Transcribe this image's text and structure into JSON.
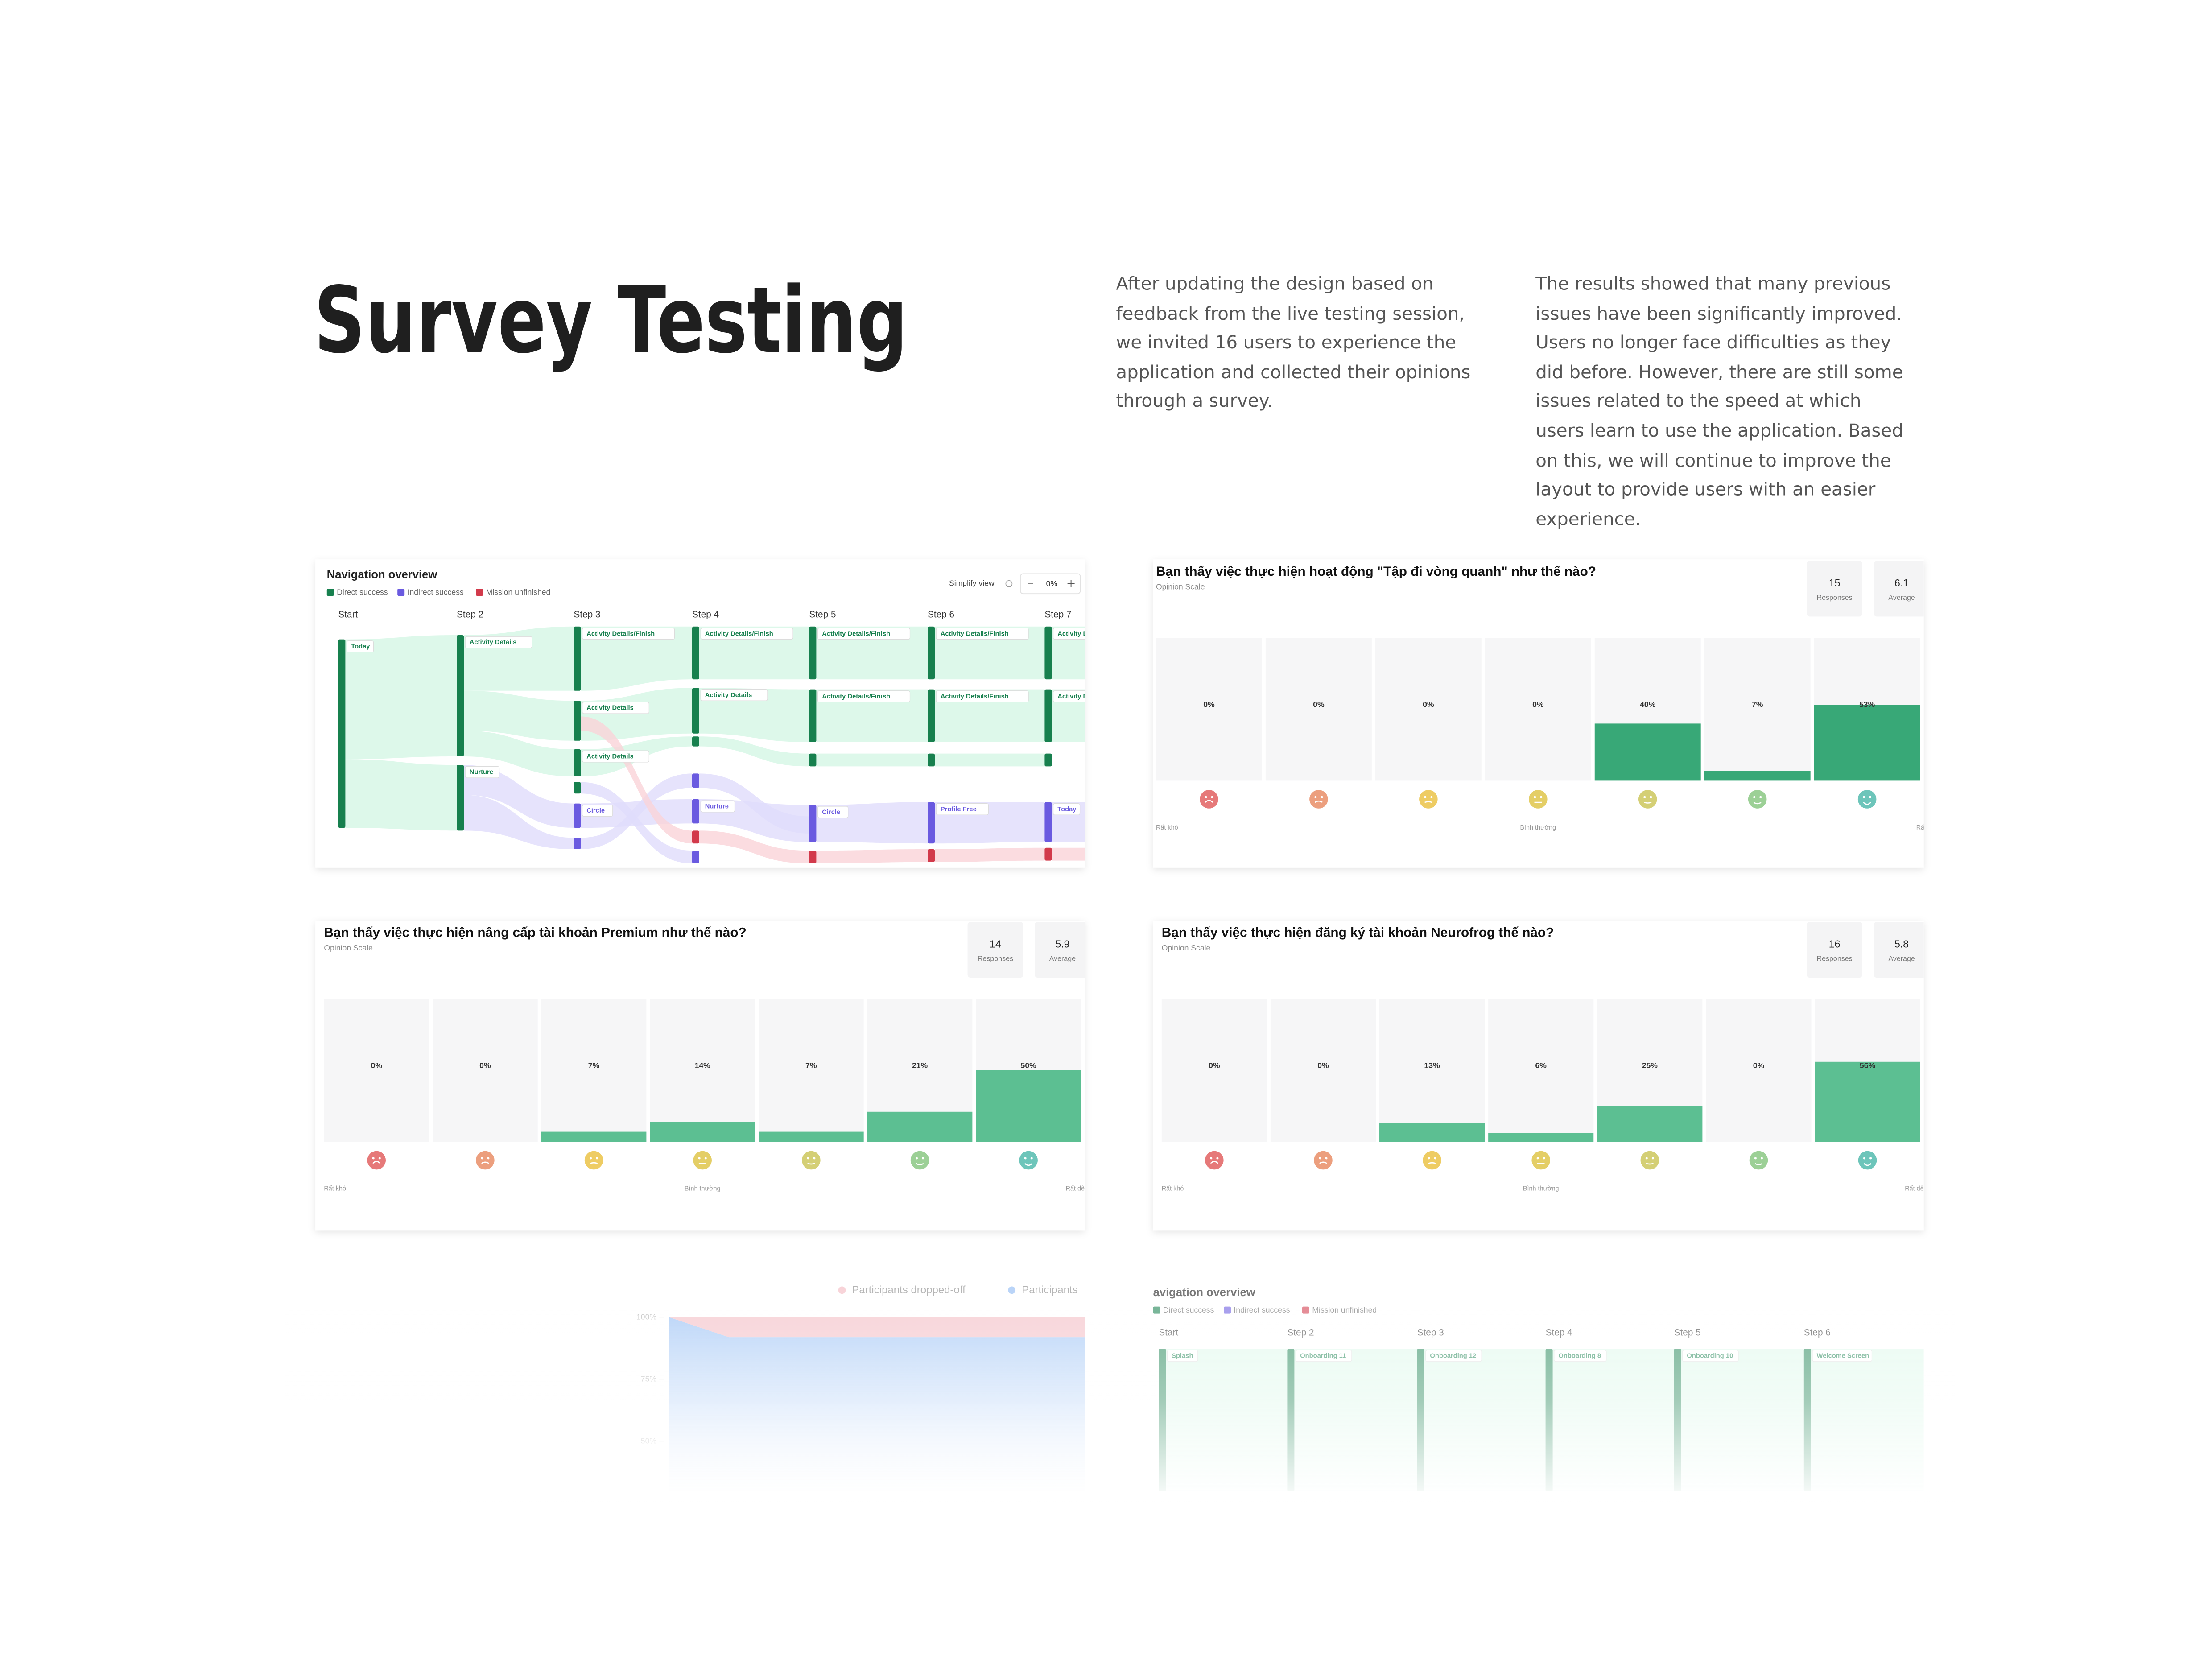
{
  "header": {
    "title": "Survey Testing",
    "paragraphs": [
      "After updating the design based on feedback from the live testing session, we invited 16 users to experience the application and collected their opinions through a survey.",
      "The results showed that many previous issues have been significantly improved. Users no longer face difficulties as they did before. However, there are still some issues related to the speed at which users learn to use the application. Based on this, we will continue to improve the layout to provide users with an easier experience."
    ]
  },
  "chart_data": [
    {
      "type": "sankey",
      "title": "Navigation overview",
      "legend": [
        {
          "name": "Direct success",
          "color": "#17804e"
        },
        {
          "name": "Indirect success",
          "color": "#6a5ae0"
        },
        {
          "name": "Mission unfinished",
          "color": "#d23a4b"
        }
      ],
      "controls": {
        "view": "Simplify view",
        "zoom": "0%"
      },
      "steps": [
        {
          "name": "Start",
          "nodes": [
            "Today"
          ]
        },
        {
          "name": "Step 2",
          "nodes": [
            "Activity Details",
            "Nurture"
          ]
        },
        {
          "name": "Step 3",
          "nodes": [
            "Activity Details/Finish",
            "Activity Details",
            "Activity Details",
            "Circle"
          ]
        },
        {
          "name": "Step 4",
          "nodes": [
            "Activity Details/Finish",
            "Activity Details",
            "Nurture"
          ]
        },
        {
          "name": "Step 5",
          "nodes": [
            "Activity Details/Finish",
            "Activity Details/Finish",
            "Circle"
          ]
        },
        {
          "name": "Step 6",
          "nodes": [
            "Activity Details/Finish",
            "Activity Details/Finish",
            "Profile Free"
          ]
        },
        {
          "name": "Step 7",
          "nodes": [
            "Activity Details/Finish",
            "Activity Details/Finish",
            "Today"
          ]
        }
      ]
    },
    {
      "type": "bar",
      "title": "Bạn thấy việc thực hiện hoạt động \"Tập đi vòng quanh\" như thế nào?",
      "subtitle": "Opinion Scale",
      "responses": 15,
      "responses_label": "Responses",
      "average": 6.1,
      "average_label": "Average",
      "values": [
        0,
        0,
        0,
        0,
        40,
        7,
        53
      ],
      "value_labels": [
        "0%",
        "0%",
        "0%",
        "0%",
        "40%",
        "7%",
        "53%"
      ],
      "scale_labels": [
        "Rất khó",
        "Bình thường",
        "Rất dễ"
      ],
      "color": "#38a877",
      "ylim": [
        0,
        100
      ]
    },
    {
      "type": "bar",
      "title": "Bạn thấy việc thực hiện nâng cấp tài khoản Premium như thế nào?",
      "subtitle": "Opinion Scale",
      "responses": 14,
      "responses_label": "Responses",
      "average": 5.9,
      "average_label": "Average",
      "values": [
        0,
        0,
        7,
        14,
        7,
        21,
        50
      ],
      "value_labels": [
        "0%",
        "0%",
        "7%",
        "14%",
        "7%",
        "21%",
        "50%"
      ],
      "scale_labels": [
        "Rất khó",
        "Bình thường",
        "Rất dễ"
      ],
      "color": "#5cbf92",
      "ylim": [
        0,
        100
      ]
    },
    {
      "type": "bar",
      "title": "Bạn thấy việc thực hiện đăng ký tài khoản Neurofrog thế nào?",
      "subtitle": "Opinion Scale",
      "responses": 16,
      "responses_label": "Responses",
      "average": 5.8,
      "average_label": "Average",
      "values": [
        0,
        0,
        13,
        6,
        25,
        0,
        56
      ],
      "value_labels": [
        "0%",
        "0%",
        "13%",
        "6%",
        "25%",
        "0%",
        "56%"
      ],
      "scale_labels": [
        "Rất khó",
        "Bình thường",
        "Rất dễ"
      ],
      "color": "#5cbf92",
      "ylim": [
        0,
        100
      ]
    },
    {
      "type": "area",
      "categories": [
        null,
        null,
        null,
        null,
        null,
        null,
        null,
        null
      ],
      "series": [
        {
          "name": "Participants dropped-off",
          "color": "#f3b9c1",
          "values": [
            0,
            8,
            8,
            8,
            8,
            8,
            8,
            8
          ]
        },
        {
          "name": "Participants",
          "color": "#8fbaf3",
          "values": [
            100,
            92,
            92,
            92,
            92,
            92,
            92,
            92
          ]
        }
      ],
      "ylim": [
        30,
        100
      ],
      "yticks": [
        {
          "value": 100,
          "label": "100%"
        },
        {
          "value": 75,
          "label": "75%"
        },
        {
          "value": 50,
          "label": "50%"
        }
      ]
    },
    {
      "type": "sankey",
      "title": "avigation overview",
      "legend": [
        {
          "name": "Direct success",
          "color": "#17804e"
        },
        {
          "name": "Indirect success",
          "color": "#6a5ae0"
        },
        {
          "name": "Mission unfinished",
          "color": "#d23a4b"
        }
      ],
      "steps": [
        {
          "name": "Start",
          "nodes": [
            "Splash"
          ]
        },
        {
          "name": "Step 2",
          "nodes": [
            "Onboarding 11"
          ]
        },
        {
          "name": "Step 3",
          "nodes": [
            "Onboarding 12"
          ]
        },
        {
          "name": "Step 4",
          "nodes": [
            "Onboarding 8"
          ]
        },
        {
          "name": "Step 5",
          "nodes": [
            "Onboarding 10"
          ]
        },
        {
          "name": "Step 6",
          "nodes": [
            "Welcome Screen"
          ]
        }
      ]
    }
  ]
}
